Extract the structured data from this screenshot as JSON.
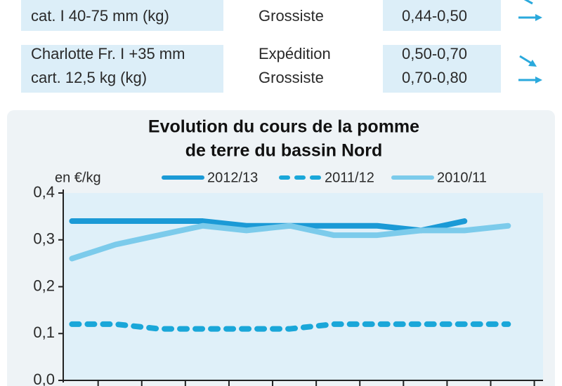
{
  "table": {
    "rows": [
      {
        "product": "cat. I 40-75 mm (kg)",
        "market": "Grossiste",
        "price": "0,44-0,50"
      },
      {
        "product": [
          "Charlotte Fr. I +35 mm",
          "cart. 12,5 kg (kg)"
        ],
        "market": [
          "Expédition",
          "Grossiste"
        ],
        "price": [
          "0,50-0,70",
          "0,70-0,80"
        ]
      }
    ]
  },
  "chart_data": {
    "type": "line",
    "title": [
      "Evolution du cours de la pomme",
      "de terre du bassin Nord"
    ],
    "y_label": "en €/kg",
    "categories": [
      null,
      null,
      null,
      null,
      null,
      null,
      null,
      null,
      null,
      null,
      null
    ],
    "series": [
      {
        "name": "2012/13",
        "color": "#1b9ad6",
        "dash": false,
        "values": [
          0.34,
          0.34,
          0.34,
          0.34,
          0.33,
          0.33,
          0.33,
          0.33,
          0.32,
          0.34,
          null
        ]
      },
      {
        "name": "2011/12",
        "color": "#1aa7d9",
        "dash": true,
        "values": [
          0.12,
          0.12,
          0.11,
          0.11,
          0.11,
          0.11,
          0.12,
          0.12,
          0.12,
          0.12,
          0.12
        ]
      },
      {
        "name": "2010/11",
        "color": "#7ccbeb",
        "dash": false,
        "values": [
          0.26,
          0.29,
          0.31,
          0.33,
          0.32,
          0.33,
          0.31,
          0.31,
          0.32,
          0.32,
          0.33
        ]
      }
    ],
    "ylim": [
      0,
      0.4
    ],
    "yticks": [
      {
        "value": 0,
        "label": "0,0"
      },
      {
        "value": 0.1,
        "label": "0,1"
      },
      {
        "value": 0.2,
        "label": "0,2"
      },
      {
        "value": 0.3,
        "label": "0,3"
      },
      {
        "value": 0.4,
        "label": "0,4"
      }
    ]
  }
}
